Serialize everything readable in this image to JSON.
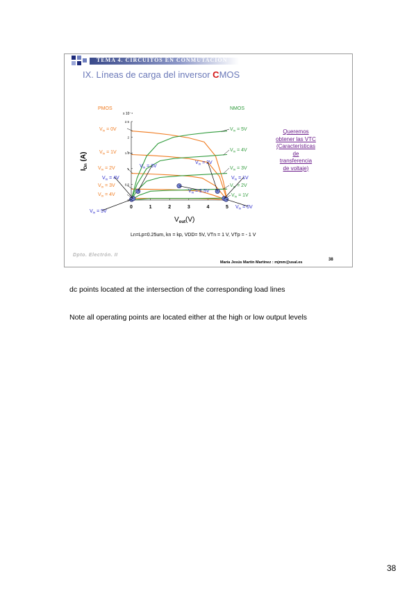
{
  "slide": {
    "header": "TEMA 4. CIRCUITOS EN CONMUTACIÓN",
    "title_main": "IX. Líneas de carga del inversor ",
    "title_c": "C",
    "title_rest": "MOS",
    "footer_logo": "Dpto. Electrón. II",
    "author": "María Jesús Martín Martínez : mjmm@usal.es",
    "slide_number": "38",
    "vtc_note": [
      "Queremos",
      "obtener las VTC",
      "(Características",
      "de",
      "transferencia",
      "de voltaje)"
    ]
  },
  "chart_data": {
    "type": "line",
    "group_labels": {
      "pmos": "PMOS",
      "nmos": "NMOS"
    },
    "y_multiplier": "x 10⁻⁴",
    "xlabel": "Vout (V)",
    "ylabel": "IDn (A)",
    "xlim": [
      0,
      5
    ],
    "ylim": [
      0,
      2.5
    ],
    "x_ticks": [
      "0",
      "1",
      "2",
      "3",
      "4",
      "5"
    ],
    "y_ticks": [
      "0",
      "0.5",
      "1",
      "1.5",
      "2",
      "2.5"
    ],
    "condition": "Ln=Lp=0.25um, kn = kp, VDD= 5V, VTn = 1 V, VTp = - 1 V",
    "pmos_labels": [
      "Vin = 0V",
      "Vin = 1V",
      "Vin = 2V",
      "Vin = 3V",
      "Vin = 4V"
    ],
    "nmos_labels": [
      "Vin = 5V",
      "Vin = 4V",
      "Vin = 3V",
      "Vin = 2V",
      "Vin = 1V"
    ],
    "point_labels": [
      "Vin = 4V",
      "Vin = 3V",
      "Vin = 2V",
      "Vin = 2.5V",
      "Vin = 1V",
      "Vin = 5V",
      "Vin = 0V"
    ],
    "series_pmos": [
      {
        "vin": 0,
        "values": [
          [
            0,
            2.2
          ],
          [
            1,
            2.15
          ],
          [
            2,
            2.08
          ],
          [
            3,
            1.98
          ],
          [
            3.8,
            1.85
          ],
          [
            4.4,
            1.4
          ],
          [
            4.8,
            0.6
          ],
          [
            5,
            0
          ]
        ]
      },
      {
        "vin": 1,
        "values": [
          [
            0,
            1.45
          ],
          [
            1,
            1.42
          ],
          [
            2,
            1.38
          ],
          [
            3,
            1.32
          ],
          [
            4,
            1.2
          ],
          [
            4.6,
            0.75
          ],
          [
            5,
            0
          ]
        ]
      },
      {
        "vin": 2,
        "values": [
          [
            0,
            0.85
          ],
          [
            1,
            0.83
          ],
          [
            2,
            0.8
          ],
          [
            3,
            0.76
          ],
          [
            3.7,
            0.7
          ],
          [
            4.4,
            0.45
          ],
          [
            5,
            0
          ]
        ]
      },
      {
        "vin": 3,
        "values": [
          [
            0,
            0.35
          ],
          [
            1,
            0.34
          ],
          [
            2,
            0.33
          ],
          [
            3,
            0.31
          ],
          [
            3.6,
            0.28
          ],
          [
            4.3,
            0.15
          ],
          [
            5,
            0
          ]
        ]
      },
      {
        "vin": 4,
        "values": [
          [
            0,
            0.05
          ],
          [
            2,
            0.05
          ],
          [
            3.5,
            0.045
          ],
          [
            4.4,
            0.03
          ],
          [
            5,
            0
          ]
        ]
      }
    ],
    "series_nmos": [
      {
        "vin": 5,
        "values": [
          [
            0,
            0
          ],
          [
            0.3,
            0.7
          ],
          [
            0.8,
            1.4
          ],
          [
            1.4,
            1.8
          ],
          [
            2.2,
            2.0
          ],
          [
            3,
            2.08
          ],
          [
            4,
            2.15
          ],
          [
            5,
            2.2
          ]
        ]
      },
      {
        "vin": 4,
        "values": [
          [
            0,
            0
          ],
          [
            0.3,
            0.5
          ],
          [
            0.8,
            1.0
          ],
          [
            1.5,
            1.25
          ],
          [
            2.2,
            1.32
          ],
          [
            3,
            1.36
          ],
          [
            4,
            1.4
          ],
          [
            5,
            1.45
          ]
        ]
      },
      {
        "vin": 3,
        "values": [
          [
            0,
            0
          ],
          [
            0.3,
            0.3
          ],
          [
            0.8,
            0.6
          ],
          [
            1.5,
            0.72
          ],
          [
            2.5,
            0.77
          ],
          [
            4,
            0.82
          ],
          [
            5,
            0.85
          ]
        ]
      },
      {
        "vin": 2,
        "values": [
          [
            0,
            0
          ],
          [
            0.4,
            0.15
          ],
          [
            1.0,
            0.28
          ],
          [
            2,
            0.31
          ],
          [
            3.5,
            0.33
          ],
          [
            5,
            0.35
          ]
        ]
      },
      {
        "vin": 1,
        "values": [
          [
            0,
            0
          ],
          [
            1,
            0.05
          ],
          [
            3,
            0.05
          ],
          [
            5,
            0.06
          ]
        ]
      }
    ],
    "operating_points": [
      {
        "vin": 5,
        "x": 0.02,
        "y": 0.02
      },
      {
        "vin": 4,
        "x": 0.1,
        "y": 0.05
      },
      {
        "vin": 3,
        "x": 0.35,
        "y": 0.28
      },
      {
        "vin": 2.5,
        "x": 2.5,
        "y": 0.45
      },
      {
        "vin": 2,
        "x": 4.5,
        "y": 0.28
      },
      {
        "vin": 1,
        "x": 4.85,
        "y": 0.05
      },
      {
        "vin": 0,
        "x": 4.95,
        "y": 0.02
      }
    ],
    "colors": {
      "pmos": "#f07a1e",
      "nmos": "#2e9a3a",
      "point_label": "#2a2acc",
      "point": "#7080d0"
    }
  },
  "captions": [
    "dc points located at the intersection of the corresponding load lines",
    "Note all operating points are located either at the high or low output levels"
  ],
  "page_number": "38"
}
